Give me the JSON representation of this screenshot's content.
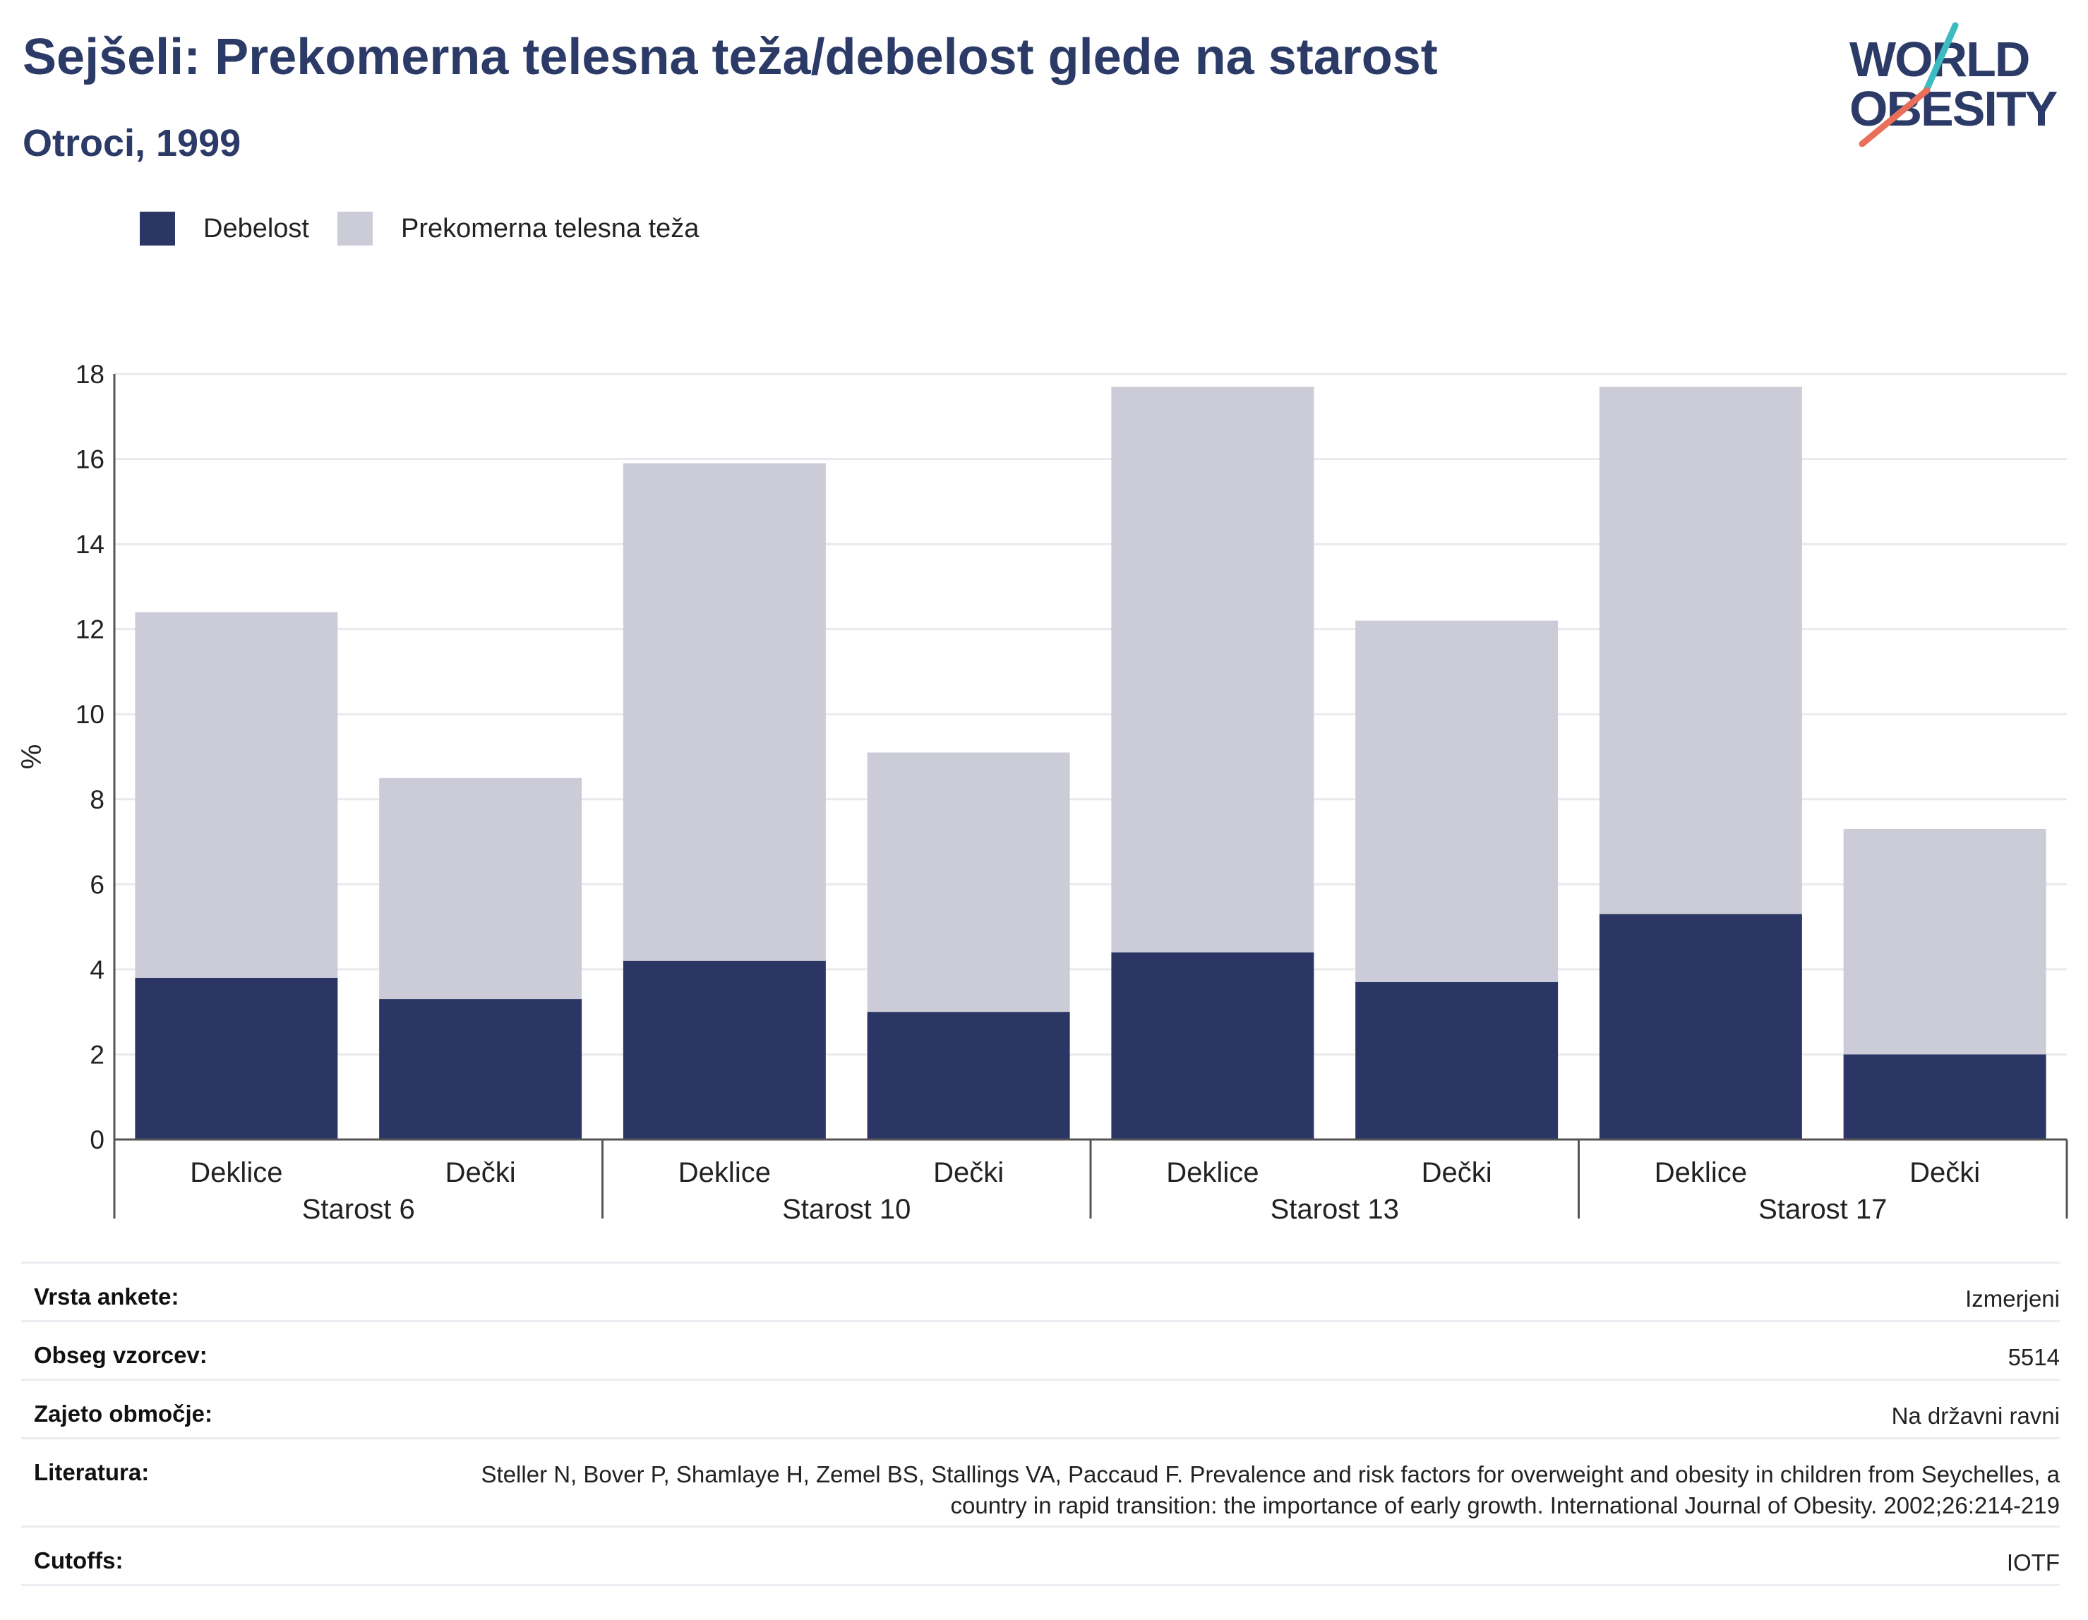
{
  "header": {
    "title": "Sejšeli: Prekomerna telesna teža/debelost glede na starost",
    "subtitle": "Otroci, 1999"
  },
  "logo": {
    "line1": "WORLD",
    "line2": "OBESITY"
  },
  "colors": {
    "obesity": "#2b3664",
    "overweight": "#cbccd8",
    "text_dark": "#2b3a66"
  },
  "legend": [
    {
      "label": "Debelost",
      "color": "#2b3664"
    },
    {
      "label": "Prekomerna telesna teža",
      "color": "#cbccd8"
    }
  ],
  "chart_data": {
    "type": "bar",
    "stacked": true,
    "ylabel": "%",
    "ylim": [
      0,
      18
    ],
    "yticks": [
      0,
      2,
      4,
      6,
      8,
      10,
      12,
      14,
      16,
      18
    ],
    "grid": true,
    "legend_position": "top-left",
    "groups": [
      "Starost 6",
      "Starost 10",
      "Starost 13",
      "Starost 17"
    ],
    "categories": [
      "Deklice",
      "Dečki",
      "Deklice",
      "Dečki",
      "Deklice",
      "Dečki",
      "Deklice",
      "Dečki"
    ],
    "series": [
      {
        "name": "Debelost",
        "values": [
          3.8,
          3.3,
          4.2,
          3.0,
          4.4,
          3.7,
          5.3,
          2.0
        ]
      },
      {
        "name": "Prekomerna telesna teža",
        "values": [
          8.6,
          5.2,
          11.7,
          6.1,
          13.3,
          8.5,
          12.4,
          5.3
        ]
      }
    ]
  },
  "info": [
    {
      "key": "Vrsta ankete:",
      "value": "Izmerjeni"
    },
    {
      "key": "Obseg vzorcev:",
      "value": "5514"
    },
    {
      "key": "Zajeto območje:",
      "value": "Na državni ravni"
    },
    {
      "key": "Literatura:",
      "value": "Steller N, Bover P, Shamlaye H, Zemel BS, Stallings VA, Paccaud F. Prevalence and risk factors for overweight and obesity in children from Seychelles, a country in rapid transition: the importance of early growth. International Journal of Obesity. 2002;26:214-219"
    },
    {
      "key": "Cutoffs:",
      "value": "IOTF"
    }
  ]
}
